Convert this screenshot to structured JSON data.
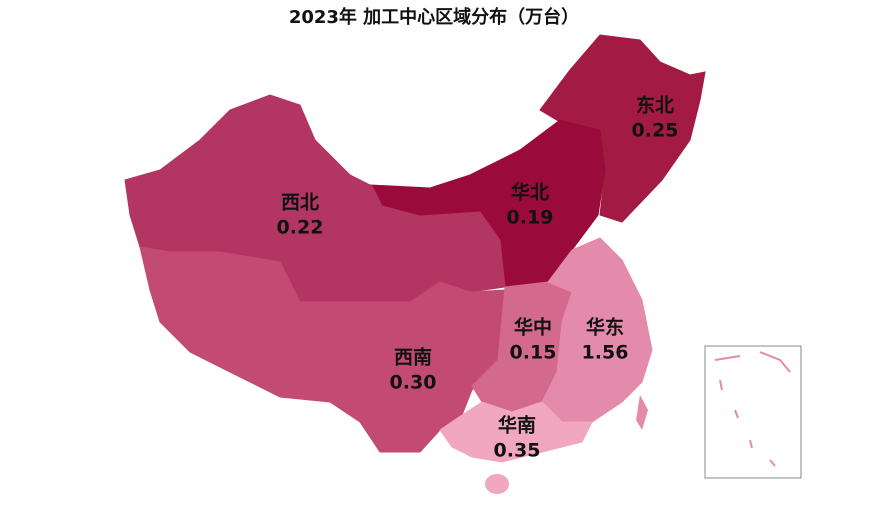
{
  "chart_data": {
    "type": "map",
    "title": "2023年 加工中心区域分布（万台）",
    "categories": [
      "东北",
      "华北",
      "西北",
      "西南",
      "华中",
      "华东",
      "华南"
    ],
    "values": [
      0.25,
      0.19,
      0.22,
      0.3,
      0.15,
      1.56,
      0.35
    ],
    "value_labels": [
      "0.25",
      "0.19",
      "0.22",
      "0.30",
      "0.15",
      "1.56",
      "0.35"
    ],
    "colors": [
      "#a31a44",
      "#9a0b3b",
      "#b33561",
      "#c34b73",
      "#d3698d",
      "#e48aaa",
      "#f1a7bf"
    ]
  }
}
